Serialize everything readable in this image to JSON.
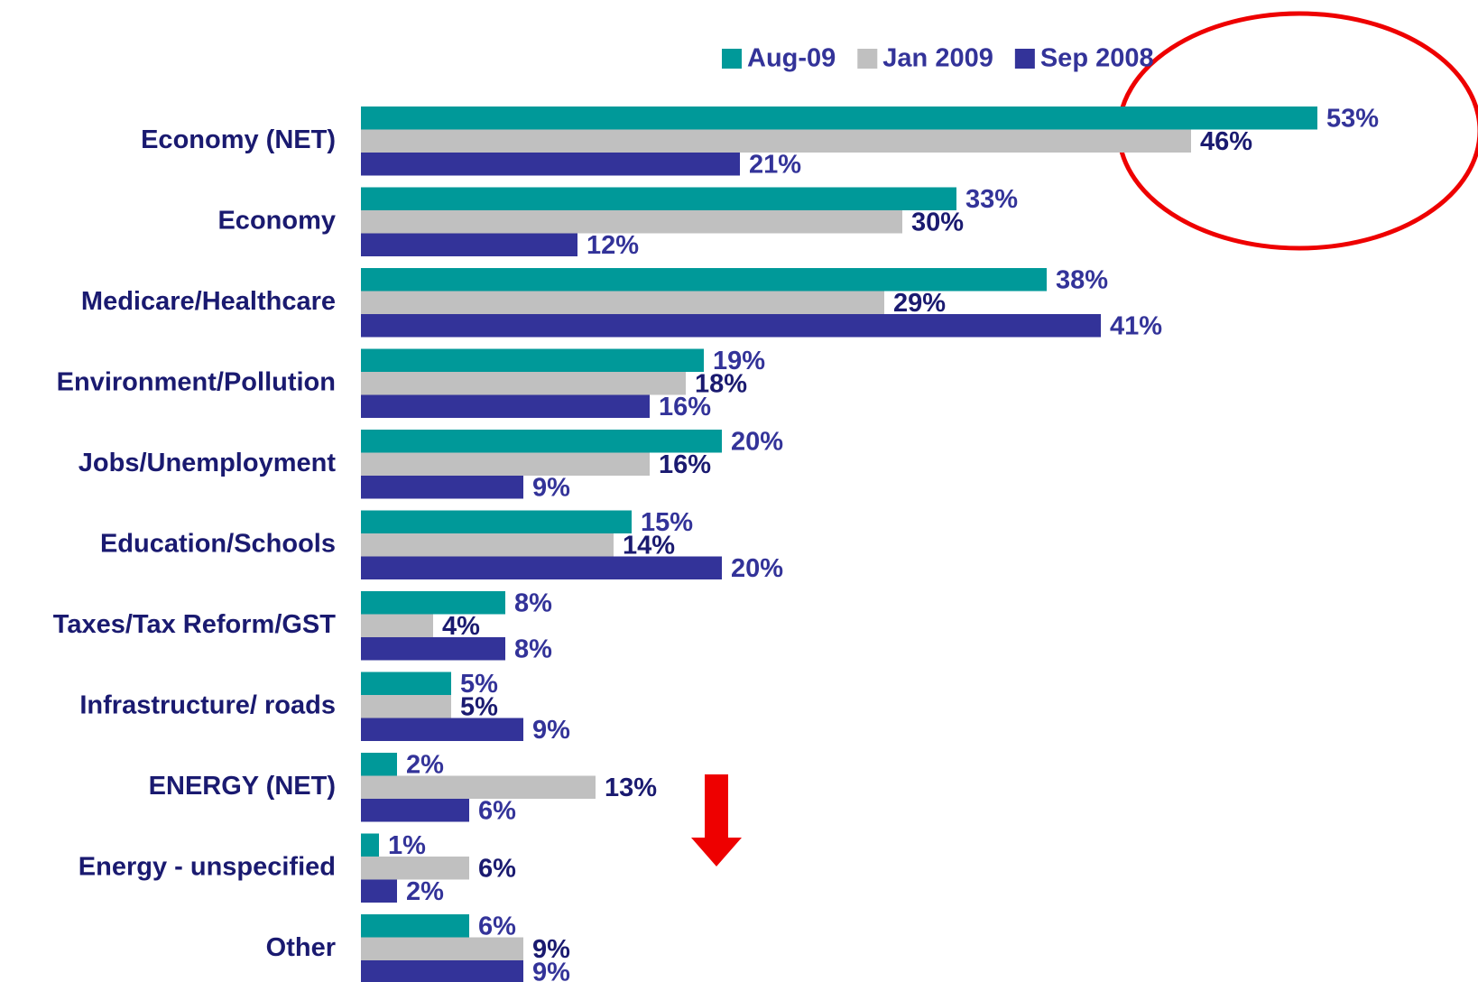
{
  "chart_data": {
    "type": "bar",
    "orientation": "horizontal",
    "categories": [
      "Economy (NET)",
      "Economy",
      "Medicare/Healthcare",
      "Environment/Pollution",
      "Jobs/Unemployment",
      "Education/Schools",
      "Taxes/Tax Reform/GST",
      "Infrastructure/ roads",
      "ENERGY (NET)",
      "Energy - unspecified",
      "Other"
    ],
    "series": [
      {
        "name": "Aug-09",
        "color": "#009999",
        "values": [
          53,
          33,
          38,
          19,
          20,
          15,
          8,
          5,
          2,
          1,
          6
        ],
        "value_labels": [
          "53%",
          "33%",
          "38%",
          "19%",
          "20%",
          "15%",
          "8%",
          "5%",
          "2%",
          "1%",
          "6%"
        ]
      },
      {
        "name": "Jan 2009",
        "color": "#c0c0c0",
        "values": [
          46,
          30,
          29,
          18,
          16,
          14,
          4,
          5,
          13,
          6,
          9
        ],
        "value_labels": [
          "46%",
          "30%",
          "29%",
          "18%",
          "16%",
          "14%",
          "4%",
          "5%",
          "13%",
          "6%",
          "9%"
        ]
      },
      {
        "name": "Sep 2008",
        "color": "#333399",
        "values": [
          21,
          12,
          41,
          16,
          9,
          20,
          8,
          9,
          6,
          2,
          9
        ],
        "value_labels": [
          "21%",
          "12%",
          "41%",
          "16%",
          "9%",
          "20%",
          "8%",
          "9%",
          "6%",
          "2%",
          "9%"
        ]
      }
    ],
    "xlim": [
      0,
      60
    ],
    "legend": "top"
  }
}
